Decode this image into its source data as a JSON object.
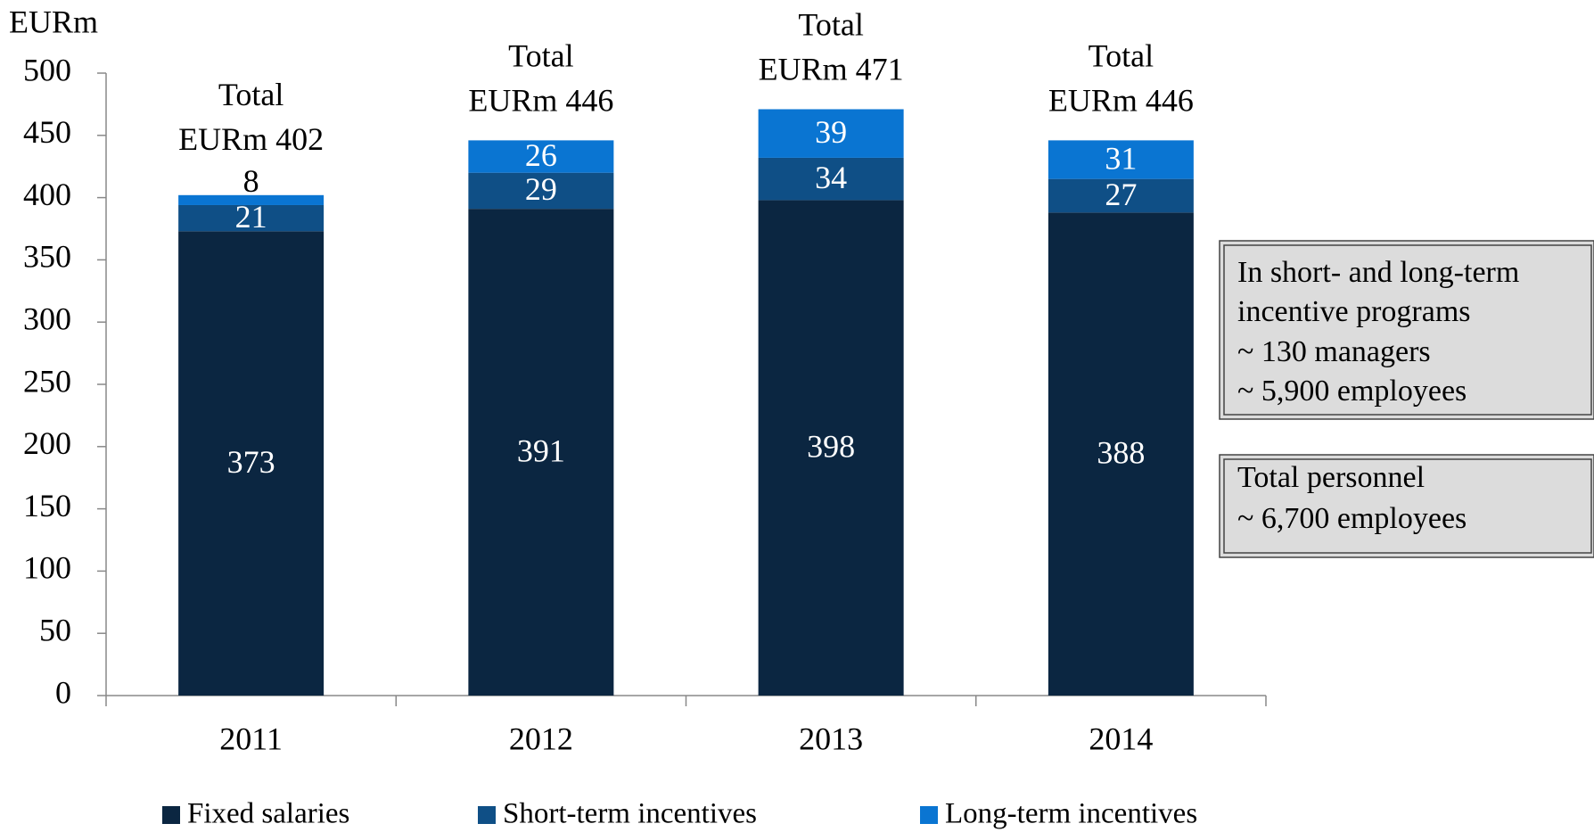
{
  "chart_data": {
    "type": "stacked_bar",
    "y_label": "EURm",
    "categories": [
      "2011",
      "2012",
      "2013",
      "2014"
    ],
    "series": [
      {
        "name": "Fixed salaries",
        "color": "#0b2641",
        "values": [
          373,
          391,
          398,
          388
        ]
      },
      {
        "name": "Short-term incentives",
        "color": "#0f4f86",
        "values": [
          21,
          29,
          34,
          27
        ]
      },
      {
        "name": "Long-term incentives",
        "color": "#0a75d2",
        "values": [
          8,
          26,
          39,
          31
        ]
      }
    ],
    "ylim": [
      0,
      500
    ],
    "yticks": [
      0,
      50,
      100,
      150,
      200,
      250,
      300,
      350,
      400,
      450,
      500
    ],
    "total_labels": [
      [
        "Total",
        "EURm 402"
      ],
      [
        "Total",
        "EURm 446"
      ],
      [
        "Total",
        "EURm 471"
      ],
      [
        "Total",
        "EURm 446"
      ]
    ],
    "notes": [
      [
        "In short- and long-term",
        "incentive programs",
        "~ 130 managers",
        "~ 5,900 employees"
      ],
      [
        "Total personnel",
        "~ 6,700 employees"
      ]
    ],
    "legend": "bottom"
  }
}
